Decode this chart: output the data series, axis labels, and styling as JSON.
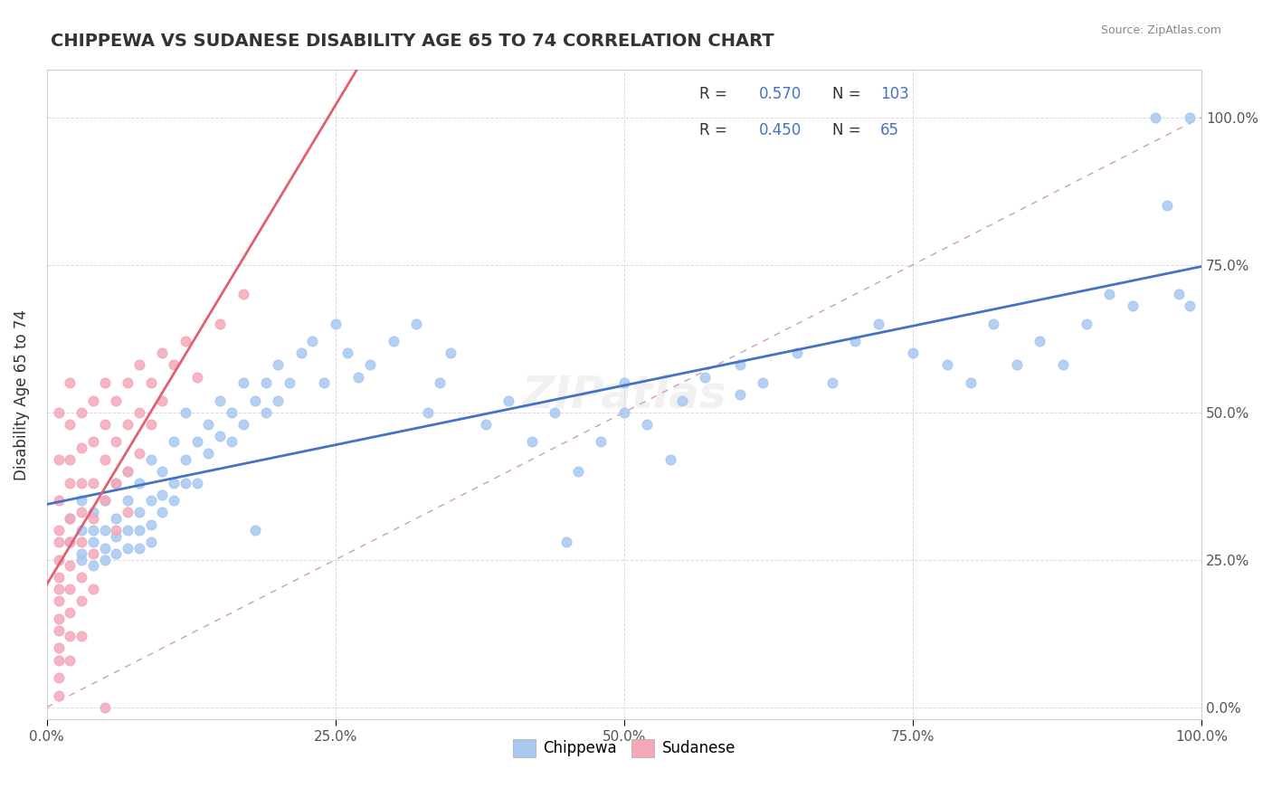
{
  "title": "CHIPPEWA VS SUDANESE DISABILITY AGE 65 TO 74 CORRELATION CHART",
  "source": "Source: ZipAtlas.com",
  "xlabel_ticks": [
    "0.0%",
    "100.0%"
  ],
  "ylabel": "Disability Age 65 to 74",
  "legend_chippewa": {
    "R": "0.570",
    "N": "103"
  },
  "legend_sudanese": {
    "R": "0.450",
    "N": "65"
  },
  "chippewa_color": "#a8c8f0",
  "sudanese_color": "#f4a8b8",
  "chippewa_line_color": "#4472c4",
  "sudanese_line_color": "#e06070",
  "diagonal_color": "#d0a0a8",
  "legend_R_color": "#4472c4",
  "legend_N_color": "#e06070",
  "background_color": "#ffffff",
  "chippewa_points": [
    [
      0.02,
      0.32
    ],
    [
      0.02,
      0.28
    ],
    [
      0.03,
      0.35
    ],
    [
      0.03,
      0.3
    ],
    [
      0.03,
      0.26
    ],
    [
      0.03,
      0.25
    ],
    [
      0.04,
      0.33
    ],
    [
      0.04,
      0.28
    ],
    [
      0.04,
      0.24
    ],
    [
      0.04,
      0.3
    ],
    [
      0.05,
      0.35
    ],
    [
      0.05,
      0.3
    ],
    [
      0.05,
      0.27
    ],
    [
      0.05,
      0.25
    ],
    [
      0.06,
      0.38
    ],
    [
      0.06,
      0.32
    ],
    [
      0.06,
      0.29
    ],
    [
      0.06,
      0.26
    ],
    [
      0.07,
      0.4
    ],
    [
      0.07,
      0.35
    ],
    [
      0.07,
      0.3
    ],
    [
      0.07,
      0.27
    ],
    [
      0.08,
      0.38
    ],
    [
      0.08,
      0.33
    ],
    [
      0.08,
      0.3
    ],
    [
      0.08,
      0.27
    ],
    [
      0.09,
      0.42
    ],
    [
      0.09,
      0.35
    ],
    [
      0.09,
      0.31
    ],
    [
      0.09,
      0.28
    ],
    [
      0.1,
      0.4
    ],
    [
      0.1,
      0.36
    ],
    [
      0.1,
      0.33
    ],
    [
      0.11,
      0.45
    ],
    [
      0.11,
      0.38
    ],
    [
      0.11,
      0.35
    ],
    [
      0.12,
      0.5
    ],
    [
      0.12,
      0.42
    ],
    [
      0.12,
      0.38
    ],
    [
      0.13,
      0.45
    ],
    [
      0.13,
      0.38
    ],
    [
      0.14,
      0.48
    ],
    [
      0.14,
      0.43
    ],
    [
      0.15,
      0.52
    ],
    [
      0.15,
      0.46
    ],
    [
      0.16,
      0.5
    ],
    [
      0.16,
      0.45
    ],
    [
      0.17,
      0.55
    ],
    [
      0.17,
      0.48
    ],
    [
      0.18,
      0.52
    ],
    [
      0.18,
      0.3
    ],
    [
      0.19,
      0.55
    ],
    [
      0.19,
      0.5
    ],
    [
      0.2,
      0.58
    ],
    [
      0.2,
      0.52
    ],
    [
      0.21,
      0.55
    ],
    [
      0.22,
      0.6
    ],
    [
      0.23,
      0.62
    ],
    [
      0.24,
      0.55
    ],
    [
      0.25,
      0.65
    ],
    [
      0.26,
      0.6
    ],
    [
      0.27,
      0.56
    ],
    [
      0.28,
      0.58
    ],
    [
      0.3,
      0.62
    ],
    [
      0.32,
      0.65
    ],
    [
      0.33,
      0.5
    ],
    [
      0.34,
      0.55
    ],
    [
      0.35,
      0.6
    ],
    [
      0.38,
      0.48
    ],
    [
      0.4,
      0.52
    ],
    [
      0.42,
      0.45
    ],
    [
      0.44,
      0.5
    ],
    [
      0.45,
      0.28
    ],
    [
      0.46,
      0.4
    ],
    [
      0.48,
      0.45
    ],
    [
      0.5,
      0.55
    ],
    [
      0.5,
      0.5
    ],
    [
      0.52,
      0.48
    ],
    [
      0.54,
      0.42
    ],
    [
      0.55,
      0.52
    ],
    [
      0.57,
      0.56
    ],
    [
      0.6,
      0.58
    ],
    [
      0.6,
      0.53
    ],
    [
      0.62,
      0.55
    ],
    [
      0.65,
      0.6
    ],
    [
      0.68,
      0.55
    ],
    [
      0.7,
      0.62
    ],
    [
      0.72,
      0.65
    ],
    [
      0.75,
      0.6
    ],
    [
      0.78,
      0.58
    ],
    [
      0.8,
      0.55
    ],
    [
      0.82,
      0.65
    ],
    [
      0.84,
      0.58
    ],
    [
      0.86,
      0.62
    ],
    [
      0.88,
      0.58
    ],
    [
      0.9,
      0.65
    ],
    [
      0.92,
      0.7
    ],
    [
      0.94,
      0.68
    ],
    [
      0.96,
      1.0
    ],
    [
      0.97,
      0.85
    ],
    [
      0.98,
      0.7
    ],
    [
      0.99,
      1.0
    ],
    [
      0.99,
      0.68
    ]
  ],
  "sudanese_points": [
    [
      0.01,
      0.5
    ],
    [
      0.01,
      0.42
    ],
    [
      0.01,
      0.35
    ],
    [
      0.01,
      0.3
    ],
    [
      0.01,
      0.28
    ],
    [
      0.01,
      0.25
    ],
    [
      0.01,
      0.22
    ],
    [
      0.01,
      0.2
    ],
    [
      0.01,
      0.18
    ],
    [
      0.01,
      0.15
    ],
    [
      0.01,
      0.13
    ],
    [
      0.01,
      0.1
    ],
    [
      0.01,
      0.08
    ],
    [
      0.01,
      0.05
    ],
    [
      0.01,
      0.02
    ],
    [
      0.02,
      0.55
    ],
    [
      0.02,
      0.48
    ],
    [
      0.02,
      0.42
    ],
    [
      0.02,
      0.38
    ],
    [
      0.02,
      0.32
    ],
    [
      0.02,
      0.28
    ],
    [
      0.02,
      0.24
    ],
    [
      0.02,
      0.2
    ],
    [
      0.02,
      0.16
    ],
    [
      0.02,
      0.12
    ],
    [
      0.02,
      0.08
    ],
    [
      0.03,
      0.5
    ],
    [
      0.03,
      0.44
    ],
    [
      0.03,
      0.38
    ],
    [
      0.03,
      0.33
    ],
    [
      0.03,
      0.28
    ],
    [
      0.03,
      0.22
    ],
    [
      0.03,
      0.18
    ],
    [
      0.03,
      0.12
    ],
    [
      0.04,
      0.52
    ],
    [
      0.04,
      0.45
    ],
    [
      0.04,
      0.38
    ],
    [
      0.04,
      0.32
    ],
    [
      0.04,
      0.26
    ],
    [
      0.04,
      0.2
    ],
    [
      0.05,
      0.55
    ],
    [
      0.05,
      0.48
    ],
    [
      0.05,
      0.42
    ],
    [
      0.05,
      0.35
    ],
    [
      0.05,
      0.0
    ],
    [
      0.06,
      0.52
    ],
    [
      0.06,
      0.45
    ],
    [
      0.06,
      0.38
    ],
    [
      0.06,
      0.3
    ],
    [
      0.07,
      0.55
    ],
    [
      0.07,
      0.48
    ],
    [
      0.07,
      0.4
    ],
    [
      0.07,
      0.33
    ],
    [
      0.08,
      0.58
    ],
    [
      0.08,
      0.5
    ],
    [
      0.08,
      0.43
    ],
    [
      0.09,
      0.55
    ],
    [
      0.09,
      0.48
    ],
    [
      0.1,
      0.6
    ],
    [
      0.1,
      0.52
    ],
    [
      0.11,
      0.58
    ],
    [
      0.12,
      0.62
    ],
    [
      0.13,
      0.56
    ],
    [
      0.15,
      0.65
    ],
    [
      0.17,
      0.7
    ]
  ]
}
